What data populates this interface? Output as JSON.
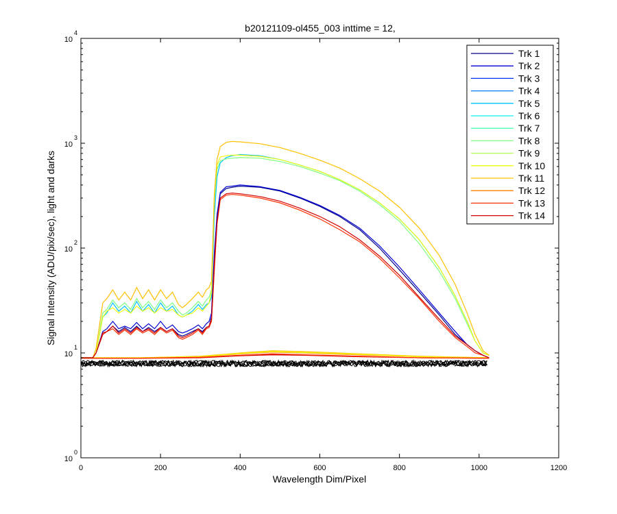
{
  "chart_data": {
    "type": "line",
    "title": "b20121109-ol455_003 inttime = 12,",
    "xlabel": "Wavelength Dim/Pixel",
    "ylabel": "Signal Intensity (ADU/pix/sec), light and darks",
    "xlim": [
      0,
      1200
    ],
    "ylim": [
      1,
      10000
    ],
    "y_scale": "log",
    "x_ticks": [
      0,
      200,
      400,
      600,
      800,
      1000,
      1200
    ],
    "y_ticks": [
      {
        "value": 1,
        "base": "10",
        "exp": "0"
      },
      {
        "value": 10,
        "base": "10",
        "exp": "1"
      },
      {
        "value": 100,
        "base": "10",
        "exp": "2"
      },
      {
        "value": 1000,
        "base": "10",
        "exp": "3"
      },
      {
        "value": 10000,
        "base": "10",
        "exp": "4"
      }
    ],
    "grid": false,
    "legend_position": "top-right",
    "series": [
      {
        "name": "Trk 1",
        "color": "#00008f"
      },
      {
        "name": "Trk 2",
        "color": "#0000d0"
      },
      {
        "name": "Trk 3",
        "color": "#0030ff"
      },
      {
        "name": "Trk 4",
        "color": "#0080ff"
      },
      {
        "name": "Trk 5",
        "color": "#00c0ff"
      },
      {
        "name": "Trk 6",
        "color": "#10efef"
      },
      {
        "name": "Trk 7",
        "color": "#50ffaf"
      },
      {
        "name": "Trk 8",
        "color": "#80ff80"
      },
      {
        "name": "Trk 9",
        "color": "#b0ff50"
      },
      {
        "name": "Trk 10",
        "color": "#efff10"
      },
      {
        "name": "Trk 11",
        "color": "#ffc000"
      },
      {
        "name": "Trk 12",
        "color": "#ff8000"
      },
      {
        "name": "Trk 13",
        "color": "#ff3000"
      },
      {
        "name": "Trk 14",
        "color": "#d00000"
      }
    ],
    "light_profiles": [
      {
        "series": "Trk 1",
        "color": "#00008f",
        "x": [
          0,
          30,
          38,
          55,
          65,
          80,
          95,
          110,
          125,
          140,
          155,
          170,
          185,
          200,
          215,
          230,
          245,
          255,
          265,
          280,
          295,
          305,
          315,
          322,
          328,
          335,
          342,
          350,
          365,
          380,
          400,
          450,
          500,
          550,
          600,
          650,
          700,
          750,
          800,
          850,
          900,
          940,
          970,
          990,
          1010,
          1025
        ],
        "y": [
          9,
          9,
          10,
          15,
          16,
          18,
          16,
          17.5,
          16,
          18,
          16,
          17.5,
          16,
          17.5,
          16,
          17,
          15,
          14.5,
          15,
          16,
          17,
          16,
          17.5,
          18,
          22,
          80,
          200,
          330,
          370,
          380,
          390,
          380,
          350,
          300,
          250,
          200,
          150,
          100,
          62,
          38,
          23,
          15,
          12,
          10.5,
          9.5,
          9
        ]
      },
      {
        "series": "Trk 2",
        "color": "#0000d0",
        "x": [
          0,
          30,
          38,
          55,
          65,
          80,
          95,
          110,
          125,
          140,
          155,
          170,
          185,
          200,
          215,
          230,
          245,
          255,
          265,
          280,
          295,
          305,
          315,
          322,
          328,
          335,
          342,
          350,
          365,
          380,
          400,
          450,
          500,
          550,
          600,
          650,
          700,
          750,
          800,
          850,
          900,
          940,
          970,
          990,
          1010,
          1025
        ],
        "y": [
          9,
          9,
          10,
          16,
          17,
          20,
          17,
          18,
          17,
          19.5,
          17,
          19,
          17,
          20,
          17,
          18.5,
          16,
          15.5,
          16,
          17,
          18.5,
          17,
          19,
          20,
          24,
          90,
          210,
          340,
          385,
          390,
          400,
          385,
          355,
          305,
          255,
          205,
          155,
          105,
          66,
          40,
          24,
          16,
          12,
          10.5,
          9.5,
          9
        ]
      },
      {
        "series": "Trk 5",
        "color": "#00c0ff",
        "x": [
          0,
          30,
          38,
          55,
          65,
          80,
          95,
          110,
          125,
          140,
          155,
          170,
          185,
          200,
          215,
          230,
          245,
          255,
          265,
          280,
          295,
          305,
          315,
          322,
          328,
          335,
          342,
          350,
          365,
          380,
          400,
          450,
          500,
          550,
          600,
          650,
          700,
          750,
          800,
          850,
          900,
          940,
          970,
          990,
          1010,
          1025
        ],
        "y": [
          9,
          9,
          10,
          22,
          24,
          30,
          25,
          28,
          24,
          31,
          25,
          29,
          24,
          30,
          25,
          28,
          23,
          22,
          23,
          25,
          29,
          26,
          29,
          30,
          34,
          200,
          480,
          650,
          730,
          760,
          780,
          760,
          700,
          620,
          540,
          450,
          360,
          270,
          190,
          120,
          65,
          35,
          20,
          13,
          10,
          9.5
        ]
      },
      {
        "series": "Trk 8",
        "color": "#80ff80",
        "x": [
          0,
          30,
          38,
          55,
          65,
          80,
          95,
          110,
          125,
          140,
          155,
          170,
          185,
          200,
          215,
          230,
          245,
          255,
          265,
          280,
          295,
          305,
          315,
          322,
          328,
          335,
          342,
          350,
          365,
          380,
          400,
          450,
          500,
          550,
          600,
          650,
          700,
          750,
          800,
          850,
          900,
          940,
          970,
          990,
          1010,
          1025
        ],
        "y": [
          9,
          9,
          10,
          24,
          26,
          32,
          27,
          30,
          26,
          33,
          27,
          31,
          26,
          32,
          27,
          30,
          25,
          23,
          24,
          27,
          31,
          28,
          32,
          34,
          40,
          280,
          560,
          680,
          710,
          720,
          730,
          720,
          670,
          600,
          520,
          440,
          350,
          260,
          180,
          110,
          60,
          33,
          19,
          13,
          10,
          9.5
        ]
      },
      {
        "series": "Trk 10",
        "color": "#efff10",
        "x": [
          0,
          30,
          38,
          55,
          65,
          80,
          95,
          110,
          125,
          140,
          155,
          170,
          185,
          200,
          215,
          230,
          245,
          255,
          265,
          280,
          295,
          305,
          315,
          322,
          328,
          335,
          342,
          350,
          365,
          380,
          400,
          450,
          500,
          550,
          600,
          650,
          700,
          750,
          800,
          850,
          900,
          940,
          970,
          990,
          1010,
          1025
        ],
        "y": [
          9,
          9,
          10,
          22,
          25,
          27,
          24,
          26,
          24,
          28,
          25,
          27,
          24,
          27,
          25,
          26,
          23,
          22,
          23,
          24,
          27,
          25,
          28,
          30,
          38,
          320,
          620,
          740,
          760,
          770,
          770,
          750,
          700,
          620,
          540,
          450,
          360,
          270,
          190,
          120,
          65,
          35,
          20,
          13,
          10,
          9.5
        ]
      },
      {
        "series": "Trk 11",
        "color": "#ffc000",
        "x": [
          0,
          30,
          38,
          55,
          65,
          80,
          95,
          110,
          125,
          140,
          155,
          170,
          185,
          200,
          215,
          230,
          245,
          255,
          265,
          280,
          295,
          305,
          315,
          322,
          328,
          335,
          342,
          350,
          365,
          380,
          400,
          450,
          500,
          550,
          600,
          650,
          700,
          750,
          800,
          850,
          900,
          940,
          970,
          990,
          1010,
          1025
        ],
        "y": [
          9,
          9,
          11,
          30,
          33,
          40,
          32,
          38,
          32,
          42,
          33,
          40,
          32,
          40,
          33,
          38,
          29,
          27,
          29,
          33,
          38,
          34,
          40,
          42,
          48,
          320,
          700,
          930,
          1020,
          1040,
          1030,
          990,
          910,
          800,
          690,
          580,
          460,
          350,
          245,
          155,
          85,
          45,
          24,
          15,
          10.5,
          9.5
        ]
      },
      {
        "series": "Trk 13",
        "color": "#ff3000",
        "x": [
          0,
          30,
          38,
          55,
          65,
          80,
          95,
          110,
          125,
          140,
          155,
          170,
          185,
          200,
          215,
          230,
          245,
          255,
          265,
          280,
          295,
          305,
          315,
          322,
          328,
          335,
          342,
          350,
          365,
          380,
          400,
          450,
          500,
          550,
          600,
          650,
          700,
          750,
          800,
          850,
          900,
          940,
          970,
          990,
          1010,
          1025
        ],
        "y": [
          9,
          9,
          10,
          15,
          16,
          17,
          15,
          16.5,
          15,
          17,
          15.5,
          16.5,
          15,
          17,
          15.5,
          16.5,
          14,
          13.5,
          14,
          15,
          16.5,
          15,
          17,
          17.5,
          20,
          60,
          170,
          290,
          320,
          325,
          320,
          300,
          270,
          230,
          190,
          150,
          115,
          80,
          52,
          33,
          20,
          14,
          11.5,
          10,
          9.5,
          9
        ]
      },
      {
        "series": "Trk 14",
        "color": "#d00000",
        "x": [
          0,
          30,
          38,
          55,
          65,
          80,
          95,
          110,
          125,
          140,
          155,
          170,
          185,
          200,
          215,
          230,
          245,
          255,
          265,
          280,
          295,
          305,
          315,
          322,
          328,
          335,
          342,
          350,
          365,
          380,
          400,
          450,
          500,
          550,
          600,
          650,
          700,
          750,
          800,
          850,
          900,
          940,
          970,
          990,
          1010,
          1025
        ],
        "y": [
          9,
          9,
          10,
          15.5,
          16,
          18,
          15.5,
          17,
          15.5,
          17.5,
          16,
          17,
          15.5,
          17.5,
          16,
          17,
          14.5,
          14,
          14.5,
          15.5,
          17,
          15.5,
          17.5,
          18,
          21,
          70,
          180,
          300,
          330,
          335,
          330,
          310,
          280,
          240,
          200,
          160,
          120,
          84,
          55,
          34,
          21,
          14.5,
          12,
          10.5,
          9.5,
          9
        ]
      }
    ],
    "dark_profiles": [
      {
        "color": "#ff8000",
        "x": [
          0,
          150,
          300,
          400,
          480,
          560,
          700,
          850,
          1025
        ],
        "y": [
          9,
          9,
          9.2,
          9.8,
          10.2,
          10,
          9.6,
          9.2,
          9
        ]
      },
      {
        "color": "#ffc000",
        "x": [
          0,
          150,
          300,
          400,
          480,
          560,
          700,
          850,
          1025
        ],
        "y": [
          9,
          9,
          9.3,
          10,
          10.5,
          10.3,
          9.8,
          9.3,
          9
        ]
      },
      {
        "color": "#efff10",
        "x": [
          0,
          150,
          300,
          400,
          480,
          560,
          700,
          850,
          1025
        ],
        "y": [
          9,
          9,
          9.2,
          9.9,
          10.3,
          10.1,
          9.7,
          9.2,
          9
        ]
      },
      {
        "color": "#d00000",
        "x": [
          0,
          150,
          300,
          400,
          480,
          560,
          700,
          850,
          1025
        ],
        "y": [
          8.9,
          8.9,
          9.0,
          9.4,
          9.6,
          9.5,
          9.2,
          9.0,
          8.9
        ]
      },
      {
        "color": "#ff3000",
        "x": [
          0,
          150,
          300,
          400,
          480,
          560,
          700,
          850,
          1025
        ],
        "y": [
          8.9,
          8.9,
          9.1,
          9.5,
          9.8,
          9.6,
          9.3,
          9.0,
          8.9
        ]
      }
    ],
    "noise_floor": {
      "color": "#000000",
      "x_range": [
        0,
        1023
      ],
      "y_band": [
        7.4,
        8.5
      ]
    }
  }
}
